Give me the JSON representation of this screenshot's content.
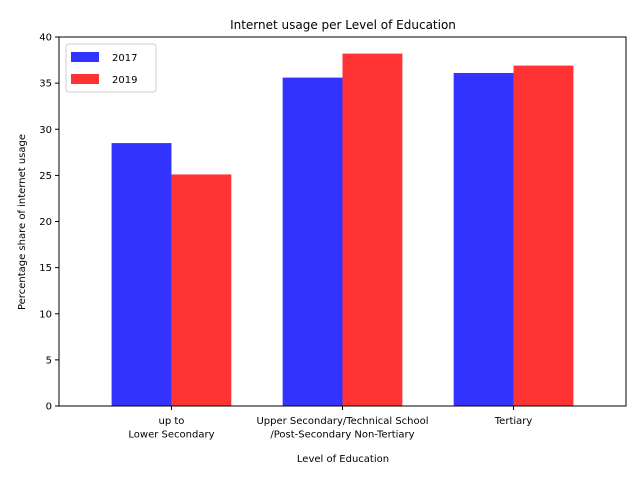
{
  "chart_data": {
    "type": "bar",
    "title": "Internet usage per Level of Education",
    "xlabel": "Level of Education",
    "ylabel": "Percentage share of internet usage",
    "categories": [
      [
        "up to",
        "Lower Secondary"
      ],
      [
        "Upper Secondary/Technical School",
        "/Post-Secondary Non-Tertiary"
      ],
      [
        "Tertiary"
      ]
    ],
    "series": [
      {
        "name": "2017",
        "color": "#3333ff",
        "values": [
          28.5,
          35.6,
          36.1
        ]
      },
      {
        "name": "2019",
        "color": "#ff3333",
        "values": [
          25.1,
          38.2,
          36.9
        ]
      }
    ],
    "ylim": [
      0,
      40
    ],
    "yticks": [
      0,
      5,
      10,
      15,
      20,
      25,
      30,
      35,
      40
    ],
    "legend": "top-left",
    "grid": false
  }
}
